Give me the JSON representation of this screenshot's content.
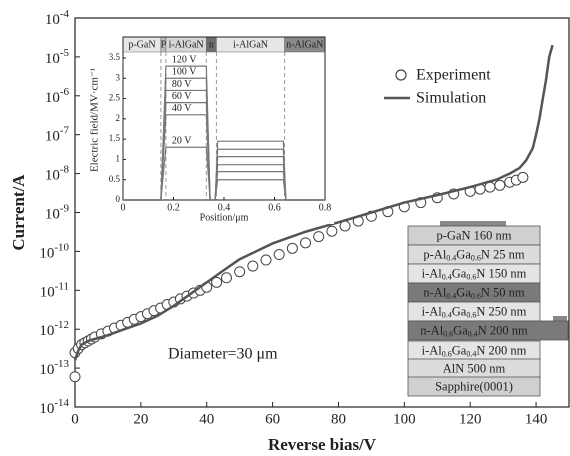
{
  "chart_data": [
    {
      "type": "line",
      "log_y": true,
      "x_label": "Reverse bias/V",
      "y_label": "Current/A",
      "xlim": [
        0,
        150
      ],
      "xticks": [
        0,
        20,
        40,
        60,
        80,
        100,
        120,
        140
      ],
      "ylim": [
        1e-14,
        0.0001
      ],
      "yticks": [
        {
          "value": 1e-14,
          "label": [
            "10",
            "-14"
          ]
        },
        {
          "value": 1e-13,
          "label": [
            "10",
            "-13"
          ]
        },
        {
          "value": 1e-12,
          "label": [
            "10",
            "-12"
          ]
        },
        {
          "value": 1e-11,
          "label": [
            "10",
            "-11"
          ]
        },
        {
          "value": 1e-10,
          "label": [
            "10",
            "-10"
          ]
        },
        {
          "value": 1e-09,
          "label": [
            "10",
            "-9"
          ]
        },
        {
          "value": 1e-08,
          "label": [
            "10",
            "-8"
          ]
        },
        {
          "value": 1e-07,
          "label": [
            "10",
            "-7"
          ]
        },
        {
          "value": 1e-06,
          "label": [
            "10",
            "-6"
          ]
        },
        {
          "value": 1e-05,
          "label": [
            "10",
            "-5"
          ]
        },
        {
          "value": 0.0001,
          "label": [
            "10",
            "-4"
          ]
        }
      ],
      "annotation": "Diameter=30 μm",
      "legend": "upper right",
      "series": [
        {
          "name": "Experiment",
          "marker": "circle",
          "color": "#444",
          "x": [
            0,
            0,
            1,
            2,
            3,
            4,
            5,
            6,
            8,
            10,
            12,
            14,
            16,
            18,
            20,
            22,
            24,
            26,
            28,
            30,
            32,
            34,
            36,
            38,
            40,
            43,
            46,
            50,
            54,
            58,
            62,
            66,
            70,
            74,
            78,
            82,
            86,
            90,
            95,
            100,
            105,
            110,
            115,
            120,
            123,
            126,
            129,
            132,
            134,
            136
          ],
          "values": [
            6e-14,
            2.5e-13,
            3.2e-13,
            4e-13,
            4.5e-13,
            5e-13,
            5.6e-13,
            6.3e-13,
            7.6e-13,
            8.9e-13,
            1.07e-12,
            1.26e-12,
            1.5e-12,
            1.8e-12,
            2.1e-12,
            2.5e-12,
            3e-12,
            3.5e-12,
            4.3e-12,
            5e-12,
            6e-12,
            7.1e-12,
            8.5e-12,
            1e-11,
            1.2e-11,
            1.6e-11,
            2.1e-11,
            3e-11,
            4.2e-11,
            6e-11,
            8.3e-11,
            1.2e-10,
            1.66e-10,
            2.4e-10,
            3.3e-10,
            4.5e-10,
            6e-10,
            8e-10,
            1.05e-09,
            1.4e-09,
            1.8e-09,
            2.4e-09,
            3e-09,
            3.5e-09,
            4e-09,
            4.5e-09,
            5e-09,
            6e-09,
            6.8e-09,
            8e-09
          ]
        },
        {
          "name": "Simulation",
          "marker": "line",
          "color": "#555",
          "x": [
            0,
            1,
            2,
            4,
            6,
            10,
            15,
            20,
            25,
            30,
            35,
            40,
            45,
            50,
            60,
            70,
            80,
            90,
            100,
            110,
            120,
            128,
            132,
            135,
            137,
            139,
            140,
            141,
            142,
            143,
            144,
            145
          ],
          "values": [
            1.6e-13,
            2.8e-13,
            4e-13,
            5e-13,
            5.6e-13,
            7e-13,
            1e-12,
            1.4e-12,
            2.2e-12,
            4e-12,
            8e-12,
            1.6e-11,
            3.2e-11,
            6.3e-11,
            1.6e-10,
            3.2e-10,
            5.6e-10,
            1e-09,
            1.8e-09,
            2.8e-09,
            4.5e-09,
            7e-09,
            1e-08,
            1.4e-08,
            2.2e-08,
            4.5e-08,
            1e-07,
            2.5e-07,
            8e-07,
            2.5e-06,
            1e-05,
            2e-05
          ]
        }
      ]
    },
    {
      "type": "line",
      "x_label": "Position/μm",
      "y_label": "Electric field/MV·cm⁻¹",
      "xlim": [
        0,
        0.8
      ],
      "xticks": [
        0,
        0.2,
        0.4,
        0.6,
        0.8
      ],
      "ylim": [
        0,
        3.5
      ],
      "yticks": [
        0,
        0.5,
        1.0,
        1.5,
        2.0,
        2.5,
        3.0,
        3.5
      ],
      "regions": [
        {
          "label": "p-GaN",
          "x0": 0,
          "x1": 0.15,
          "color": "#e6e6e6"
        },
        {
          "label": "P",
          "x0": 0.15,
          "x1": 0.17,
          "color": "#bdbdbd"
        },
        {
          "label": "i-AlGaN",
          "x0": 0.17,
          "x1": 0.33,
          "color": "#d6d6d6"
        },
        {
          "label": "n",
          "x0": 0.33,
          "x1": 0.37,
          "color": "#6e6e6e"
        },
        {
          "label": "i-AlGaN",
          "x0": 0.37,
          "x1": 0.64,
          "color": "#e6e6e6"
        },
        {
          "label": "n-AlGaN",
          "x0": 0.64,
          "x1": 0.8,
          "color": "#8a8a8a"
        }
      ],
      "x": [
        0,
        0.15,
        0.17,
        0.33,
        0.345,
        0.365,
        0.375,
        0.635,
        0.645,
        0.8
      ],
      "series": [
        {
          "name": "120 V",
          "color": "#777",
          "values": [
            0,
            0,
            3.3,
            3.3,
            0,
            0,
            1.45,
            1.45,
            0,
            0
          ]
        },
        {
          "name": "100 V",
          "color": "#777",
          "values": [
            0,
            0,
            3.0,
            3.0,
            0,
            0,
            1.25,
            1.25,
            0,
            0
          ]
        },
        {
          "name": "80 V",
          "color": "#777",
          "values": [
            0,
            0,
            2.7,
            2.7,
            0,
            0,
            1.07,
            1.07,
            0,
            0
          ]
        },
        {
          "name": "60 V",
          "color": "#777",
          "values": [
            0,
            0,
            2.4,
            2.4,
            0,
            0,
            0.87,
            0.87,
            0,
            0
          ]
        },
        {
          "name": "40 V",
          "color": "#777",
          "values": [
            0,
            0,
            2.1,
            2.1,
            0,
            0,
            0.7,
            0.7,
            0,
            0
          ]
        },
        {
          "name": "20 V",
          "color": "#777",
          "values": [
            0,
            0,
            1.3,
            1.3,
            0,
            0,
            0.5,
            0.5,
            0,
            0
          ]
        }
      ]
    }
  ],
  "layer_stack": {
    "layers": [
      {
        "parts": [
          "p-GaN  160 nm"
        ],
        "color": "#d0d0d0"
      },
      {
        "parts": [
          "p-Al",
          "0.4",
          "Ga",
          "0.6",
          "N 25 nm"
        ],
        "color": "#dcdcdc"
      },
      {
        "parts": [
          "i-Al",
          "0.4",
          "Ga",
          "0.6",
          "N 150 nm"
        ],
        "color": "#e4e4e4"
      },
      {
        "parts": [
          "n-Al",
          "0.4",
          "Ga",
          "0.6",
          "N 50 nm"
        ],
        "color": "#7a7a7a"
      },
      {
        "parts": [
          "i-Al",
          "0.4",
          "Ga",
          "0.6",
          "N 250 nm"
        ],
        "color": "#e4e4e4"
      },
      {
        "parts": [
          "n-Al",
          "0.6",
          "Ga",
          "0.4",
          "N 200 nm"
        ],
        "color": "#7a7a7a"
      },
      {
        "parts": [
          "i-Al",
          "0.6",
          "Ga",
          "0.4",
          "N 200 nm"
        ],
        "color": "#e4e4e4"
      },
      {
        "parts": [
          "AlN   500 nm"
        ],
        "color": "#dcdcdc"
      },
      {
        "parts": [
          "Sapphire(0001)"
        ],
        "color": "#d0d0d0"
      }
    ]
  }
}
